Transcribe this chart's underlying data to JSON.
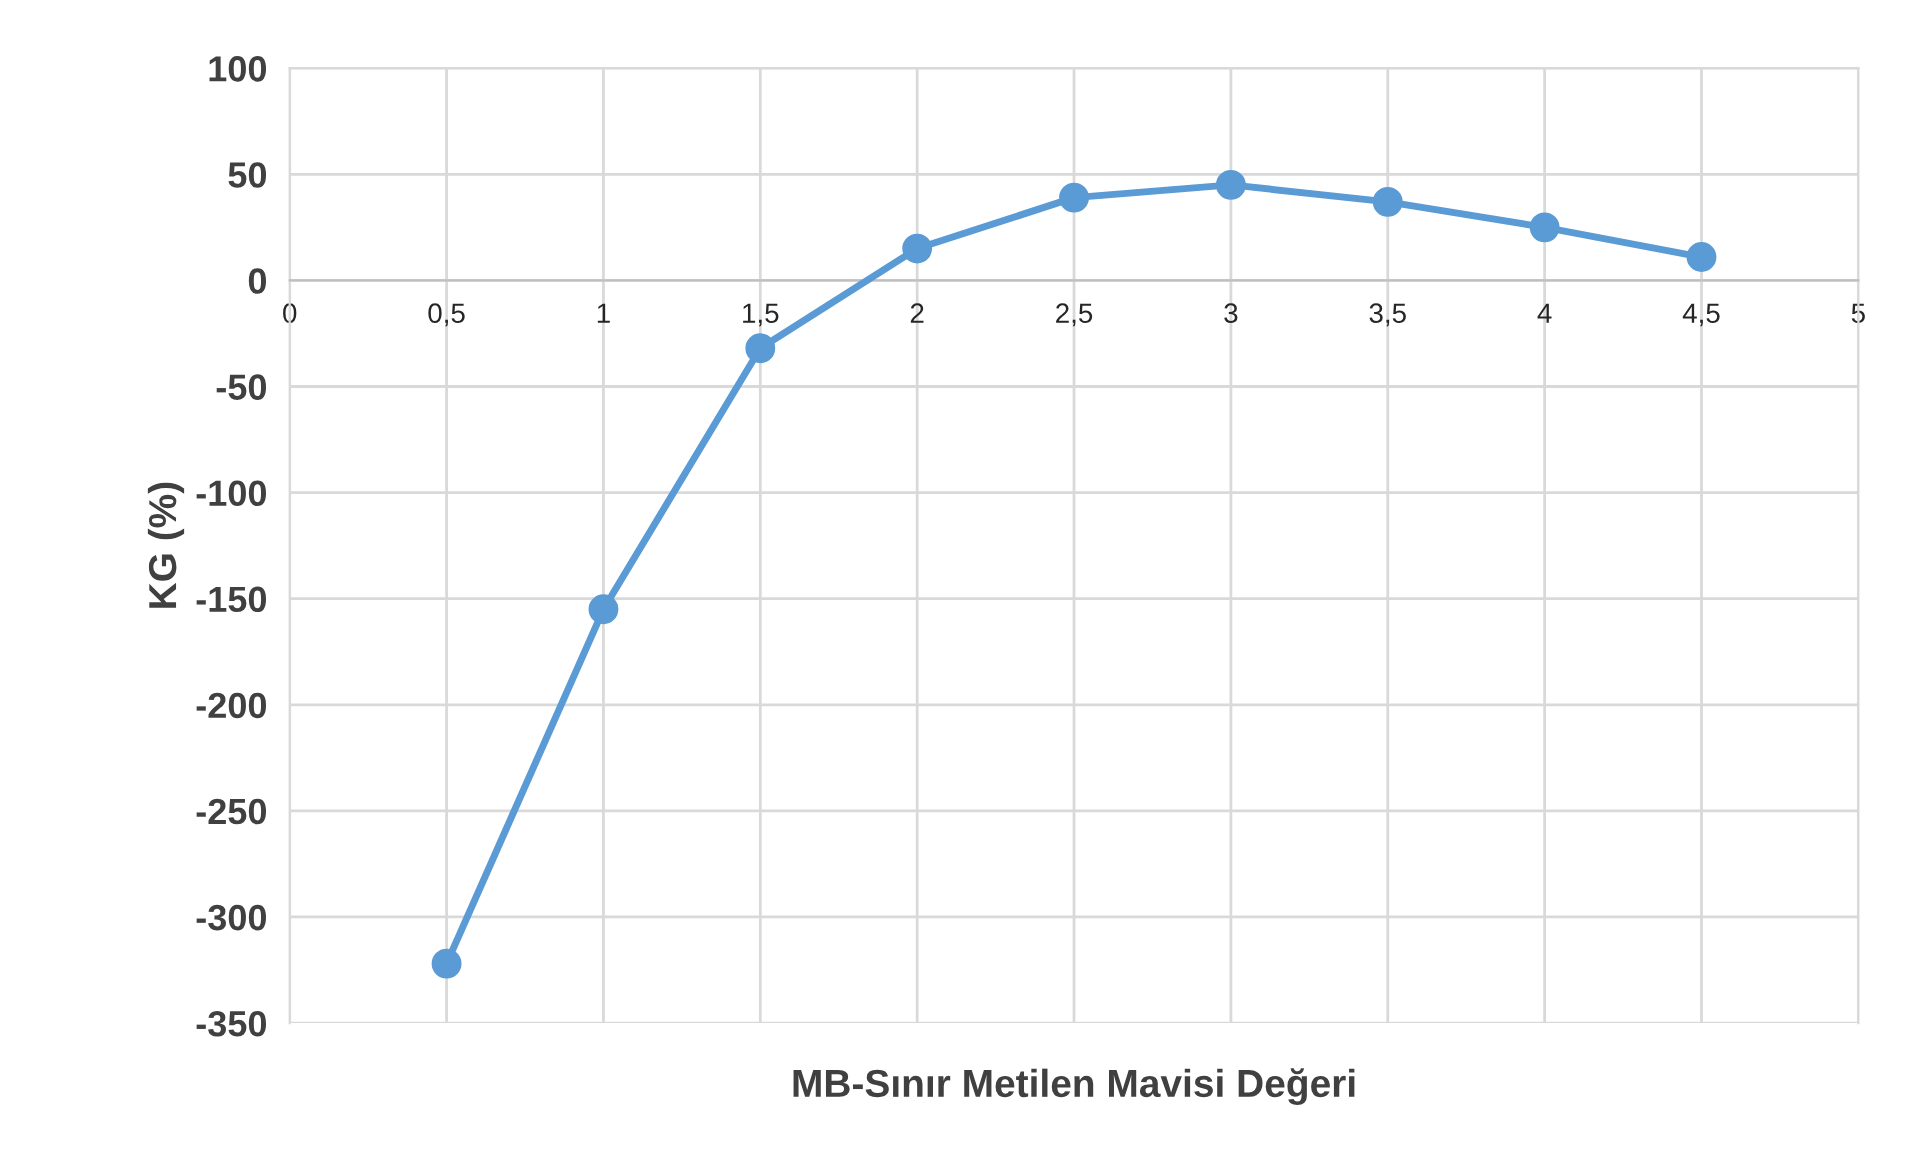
{
  "chart_data": {
    "type": "line",
    "xlabel": "MB-Sınır Metilen Mavisi Değeri",
    "ylabel": "KG (%)",
    "x": [
      0.5,
      1,
      1.5,
      2,
      2.5,
      3,
      3.5,
      4,
      4.5
    ],
    "series": [
      {
        "color": "#5b9bd5",
        "values": [
          -322,
          -155,
          -32,
          15,
          39,
          45,
          37,
          25,
          11
        ]
      }
    ],
    "xlim": [
      0,
      5
    ],
    "xticks": [
      0,
      {
        "value": 0.5,
        "label": "0,5"
      },
      1,
      {
        "value": 1.5,
        "label": "1,5"
      },
      2,
      {
        "value": 2.5,
        "label": "2,5"
      },
      3,
      {
        "value": 3.5,
        "label": "3,5"
      },
      4,
      {
        "value": 4.5,
        "label": "4,5"
      },
      5
    ],
    "ylim": [
      -350,
      100
    ],
    "yticks": [
      -350,
      -300,
      -250,
      -200,
      -150,
      -100,
      -50,
      0,
      50,
      100
    ],
    "grid": true,
    "marker": "circle",
    "line_style": "solid"
  }
}
